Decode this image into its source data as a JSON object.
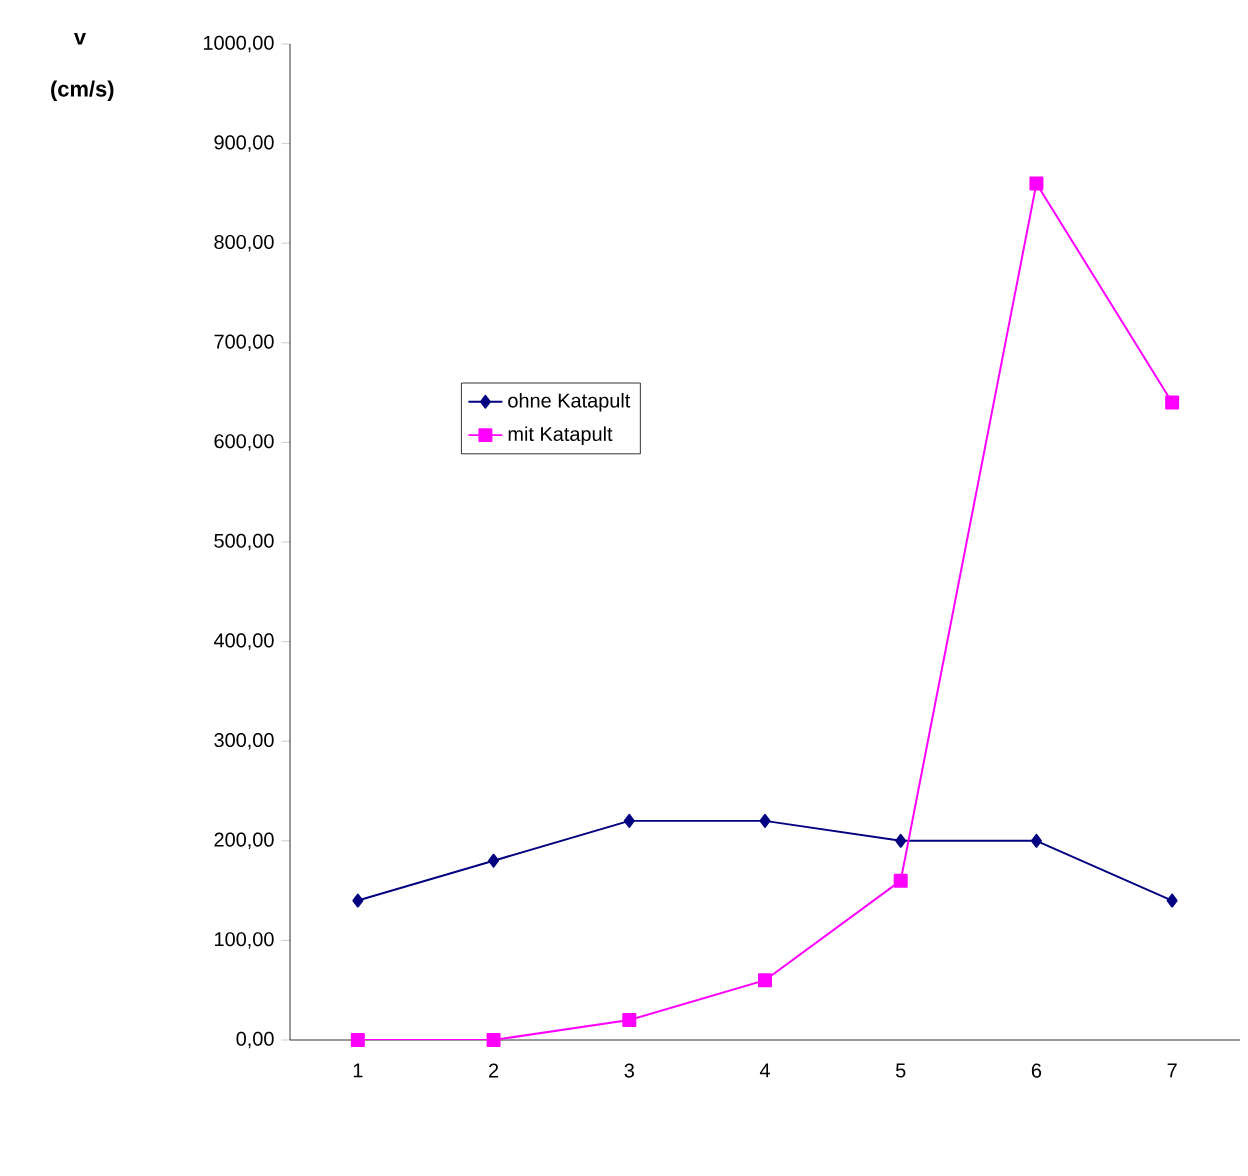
{
  "chart_data": {
    "type": "line",
    "ylabel": "v (cm/s)",
    "categories": [
      "1",
      "2",
      "3",
      "4",
      "5",
      "6",
      "7"
    ],
    "series": [
      {
        "name": "ohne Katapult",
        "color": "#000080",
        "marker": "diamond",
        "values": [
          140,
          180,
          220,
          220,
          200,
          200,
          140
        ]
      },
      {
        "name": "mit Katapult",
        "color": "#ff00ff",
        "marker": "square",
        "values": [
          0,
          0,
          20,
          60,
          160,
          860,
          640
        ]
      }
    ],
    "ylim": [
      0,
      1000
    ],
    "yticks": [
      {
        "value": 0,
        "label": "0,00"
      },
      {
        "value": 100,
        "label": "100,00"
      },
      {
        "value": 200,
        "label": "200,00"
      },
      {
        "value": 300,
        "label": "300,00"
      },
      {
        "value": 400,
        "label": "400,00"
      },
      {
        "value": 500,
        "label": "500,00"
      },
      {
        "value": 600,
        "label": "600,00"
      },
      {
        "value": 700,
        "label": "700,00"
      },
      {
        "value": 800,
        "label": "800,00"
      },
      {
        "value": 900,
        "label": "900,00"
      },
      {
        "value": 1000,
        "label": "1000,00"
      }
    ],
    "legend": "left",
    "grid": false
  }
}
